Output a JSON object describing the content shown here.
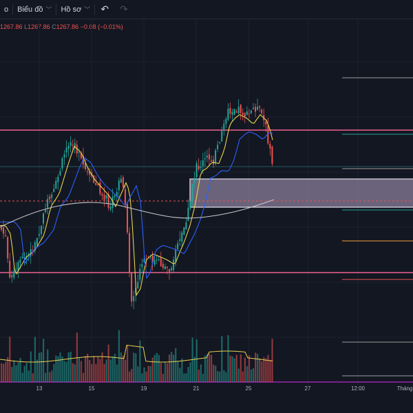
{
  "toolbar": {
    "partial_label": "o",
    "chart_menu": "Biểu đồ",
    "profile_menu": "Hồ sơ",
    "undo_icon": "undo-icon",
    "redo_icon": "redo-icon"
  },
  "ohlc": {
    "h_value": "1267.86",
    "l_label": "L",
    "l_value": "1267.86",
    "c_label": "C",
    "c_value": "1267.86",
    "change": "−0.08 (−0.01%)"
  },
  "chart_data": {
    "type": "candlestick",
    "x_tick_labels": [
      "13",
      "15",
      "19",
      "21",
      "25",
      "27",
      "12:00",
      "Tháng"
    ],
    "colors": {
      "up": "#26a69a",
      "down": "#ef5350",
      "ma_fast": "#e8d44d",
      "ma_mid": "#2962ff",
      "ma_slow": "#c9c9c9",
      "level_pink": "#f06292",
      "zone_fill": "#b2a3c4",
      "volume_ma": "#e8d44d"
    },
    "horizontal_levels": [
      {
        "name": "resistance-line",
        "color": "#f06292"
      },
      {
        "name": "support-line",
        "color": "#f06292"
      },
      {
        "name": "last-price-dashed-line",
        "color": "#ef5350"
      }
    ]
  }
}
